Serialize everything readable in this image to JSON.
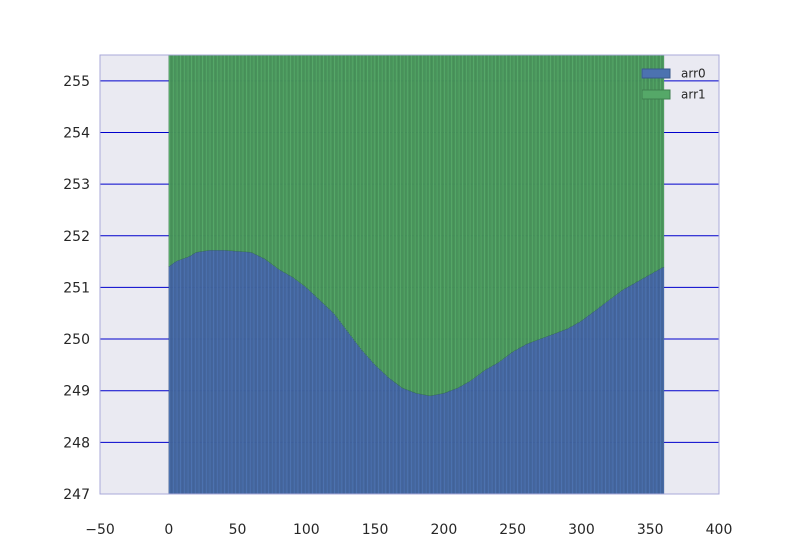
{
  "chart_data": {
    "type": "bar",
    "stacked": true,
    "x_range": [
      -50,
      400
    ],
    "ylim": [
      247,
      255.5
    ],
    "x_ticks": [
      -50,
      0,
      50,
      100,
      150,
      200,
      250,
      300,
      350,
      400
    ],
    "x_tick_labels": [
      "−50",
      "0",
      "50",
      "100",
      "150",
      "200",
      "250",
      "300",
      "350",
      "400"
    ],
    "y_ticks": [
      247,
      248,
      249,
      250,
      251,
      252,
      253,
      254,
      255
    ],
    "y_tick_labels": [
      "247",
      "248",
      "249",
      "250",
      "251",
      "252",
      "253",
      "254",
      "255"
    ],
    "grid": "horizontal",
    "legend_position": "top-right",
    "bar_x_start": 0,
    "bar_count": 360,
    "bar_width": 1,
    "baseline": 247,
    "series": [
      {
        "name": "arr0",
        "color": "#4c72b0",
        "profile_x": [
          0,
          5,
          10,
          15,
          20,
          30,
          40,
          50,
          60,
          70,
          80,
          90,
          100,
          110,
          120,
          130,
          140,
          150,
          160,
          170,
          180,
          190,
          200,
          210,
          220,
          230,
          240,
          250,
          260,
          270,
          280,
          290,
          300,
          310,
          320,
          330,
          340,
          350,
          360
        ],
        "profile_y": [
          251.4,
          251.5,
          251.55,
          251.6,
          251.68,
          251.72,
          251.72,
          251.7,
          251.68,
          251.55,
          251.35,
          251.2,
          251.0,
          250.75,
          250.5,
          250.15,
          249.8,
          249.5,
          249.25,
          249.05,
          248.95,
          248.9,
          248.95,
          249.05,
          249.2,
          249.4,
          249.55,
          249.75,
          249.9,
          250.0,
          250.1,
          250.2,
          250.35,
          250.55,
          250.75,
          250.95,
          251.1,
          251.25,
          251.4
        ]
      },
      {
        "name": "arr1",
        "color": "#55a868",
        "top": 255.5
      }
    ]
  }
}
